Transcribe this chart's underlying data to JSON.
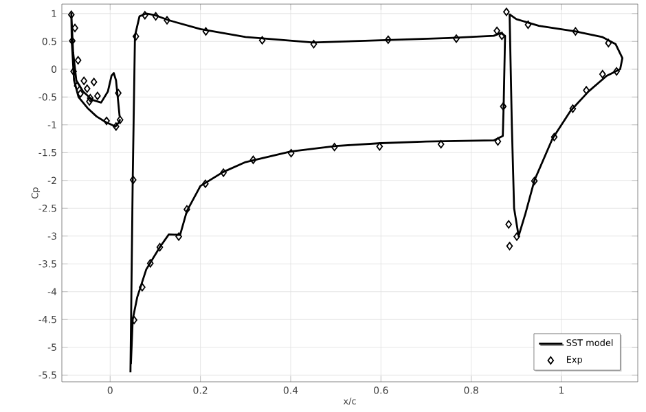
{
  "chart_data": {
    "type": "line",
    "xlabel": "x/c",
    "ylabel": "Cp",
    "xlim": [
      -0.107,
      1.169
    ],
    "ylim": [
      -5.62,
      1.17
    ],
    "xticks": [
      0,
      0.2,
      0.4,
      0.6,
      0.8,
      1
    ],
    "yticks": [
      1,
      0.5,
      0,
      -0.5,
      -1,
      -1.5,
      -2,
      -2.5,
      -3,
      -3.5,
      -4,
      -4.5,
      -5,
      -5.5
    ],
    "grid": true,
    "legend": "bottom right",
    "series": [
      {
        "name": "SST model",
        "type": "line",
        "color": "#000000",
        "marker": "none",
        "line_style": "solid",
        "x": [
          0.045,
          0.05,
          0.055,
          0.065,
          0.08,
          0.1,
          0.13,
          0.2,
          0.3,
          0.45,
          0.6,
          0.75,
          0.85,
          0.865,
          0.875,
          0.872,
          0.87,
          0.85,
          0.7,
          0.6,
          0.5,
          0.4,
          0.3,
          0.25,
          0.2,
          0.17,
          0.155,
          0.13,
          0.11,
          0.08,
          0.06,
          0.05,
          0.046
        ],
        "values": [
          -5.45,
          -2,
          0.6,
          0.95,
          1.0,
          0.97,
          0.88,
          0.72,
          0.58,
          0.48,
          0.52,
          0.56,
          0.6,
          0.65,
          0.6,
          -0.6,
          -1.2,
          -1.28,
          -1.3,
          -1.33,
          -1.38,
          -1.48,
          -1.67,
          -1.85,
          -2.1,
          -2.55,
          -2.98,
          -2.97,
          -3.2,
          -3.6,
          -4.1,
          -4.5,
          -5.3
        ]
      },
      {
        "color": "#000000",
        "marker": "none",
        "line_style": "solid",
        "x": [
          0.022,
          0.02,
          0.012,
          -0.01,
          -0.03,
          -0.05,
          -0.07,
          -0.08,
          -0.085,
          -0.086,
          -0.082,
          -0.075,
          -0.06,
          -0.04,
          -0.02,
          -0.005,
          0.003,
          0.008,
          0.013,
          0.018,
          0.021
        ],
        "values": [
          -0.9,
          -0.95,
          -1.03,
          -0.95,
          -0.85,
          -0.7,
          -0.5,
          -0.2,
          0.5,
          1.0,
          0.3,
          -0.2,
          -0.4,
          -0.55,
          -0.6,
          -0.4,
          -0.12,
          -0.07,
          -0.2,
          -0.6,
          -0.85
        ]
      },
      {
        "color": "#000000",
        "marker": "none",
        "line_style": "solid",
        "x": [
          0.885,
          0.89,
          0.895,
          0.905,
          0.92,
          0.94,
          0.98,
          1.02,
          1.06,
          1.1,
          1.13,
          1.135,
          1.12,
          1.09,
          1.03,
          0.95,
          0.9,
          0.886
        ],
        "values": [
          1.0,
          -1,
          -2.5,
          -3.0,
          -2.6,
          -2.0,
          -1.25,
          -0.75,
          -0.4,
          -0.12,
          0.0,
          0.2,
          0.45,
          0.58,
          0.68,
          0.78,
          0.9,
          0.98
        ]
      },
      {
        "name": "Exp",
        "type": "scatter",
        "color": "#000000",
        "marker": "diamond",
        "x": [
          -0.086,
          -0.078,
          -0.084,
          -0.081,
          -0.071,
          -0.073,
          -0.066,
          -0.058,
          -0.051,
          -0.044,
          -0.036,
          -0.028,
          -0.046,
          -0.008,
          0.013,
          0.018,
          0.022,
          0.051,
          0.057,
          0.077,
          0.101,
          0.126,
          0.212,
          0.337,
          0.451,
          0.616,
          0.767,
          0.857,
          0.868,
          0.878,
          0.926,
          1.031,
          1.104,
          1.122,
          1.091,
          1.055,
          1.025,
          0.984,
          0.94,
          0.871,
          0.859,
          0.733,
          0.597,
          0.497,
          0.883,
          0.901,
          0.885,
          0.211,
          0.251,
          0.317,
          0.401,
          0.17,
          0.152,
          0.11,
          0.089,
          0.071,
          0.053
        ],
        "values": [
          0.98,
          0.74,
          0.51,
          -0.04,
          0.16,
          -0.3,
          -0.44,
          -0.21,
          -0.35,
          -0.52,
          -0.23,
          -0.48,
          -0.58,
          -0.93,
          -1.03,
          -0.43,
          -0.91,
          -1.99,
          0.59,
          0.97,
          0.95,
          0.88,
          0.68,
          0.52,
          0.45,
          0.53,
          0.55,
          0.69,
          0.6,
          1.03,
          0.8,
          0.68,
          0.47,
          -0.04,
          -0.09,
          -0.38,
          -0.71,
          -1.22,
          -2.01,
          -0.67,
          -1.3,
          -1.35,
          -1.39,
          -1.4,
          -2.79,
          -3.01,
          -3.18,
          -2.06,
          -1.86,
          -1.63,
          -1.51,
          -2.52,
          -3.01,
          -3.2,
          -3.49,
          -3.92,
          -4.51
        ]
      }
    ]
  }
}
